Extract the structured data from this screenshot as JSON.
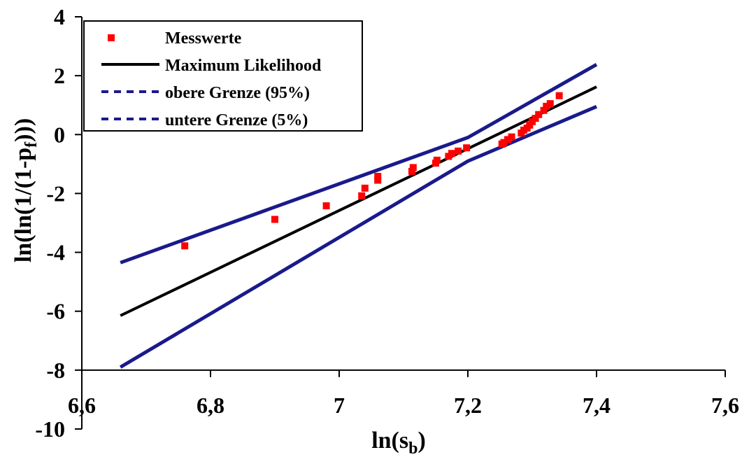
{
  "chart_data": {
    "type": "scatter",
    "xlabel": "ln(s",
    "xlabel_sub": "b",
    "xlabel_end": ")",
    "ylabel": "ln(ln(1/(1-p",
    "ylabel_sub": "f",
    "ylabel_end": ")))",
    "xlim": [
      6.6,
      7.6
    ],
    "ylim": [
      -10,
      4
    ],
    "x_ticks": [
      6.6,
      6.8,
      7.0,
      7.2,
      7.4,
      7.6
    ],
    "x_tick_labels": [
      "6,6",
      "6,8",
      "7",
      "7,2",
      "7,4",
      "7,6"
    ],
    "y_ticks": [
      4,
      2,
      0,
      -2,
      -4,
      -6,
      -8,
      -10
    ],
    "y_tick_labels": [
      "4",
      "2",
      "0",
      "-2",
      "-4",
      "-6",
      "-8",
      "-10"
    ],
    "x_axis_at_y": -8,
    "legend_position": "top-left",
    "series": [
      {
        "name": "Messwerte",
        "kind": "markers",
        "marker": "square",
        "color": "#ff0000",
        "points": [
          [
            6.76,
            -3.78
          ],
          [
            6.9,
            -2.88
          ],
          [
            6.98,
            -2.42
          ],
          [
            7.035,
            -2.08
          ],
          [
            7.04,
            -1.82
          ],
          [
            7.06,
            -1.55
          ],
          [
            7.06,
            -1.42
          ],
          [
            7.113,
            -1.25
          ],
          [
            7.115,
            -1.12
          ],
          [
            7.15,
            -0.97
          ],
          [
            7.152,
            -0.87
          ],
          [
            7.17,
            -0.74
          ],
          [
            7.175,
            -0.64
          ],
          [
            7.185,
            -0.56
          ],
          [
            7.198,
            -0.45
          ],
          [
            7.253,
            -0.32
          ],
          [
            7.256,
            -0.27
          ],
          [
            7.262,
            -0.17
          ],
          [
            7.268,
            -0.08
          ],
          [
            7.283,
            0.05
          ],
          [
            7.287,
            0.15
          ],
          [
            7.292,
            0.22
          ],
          [
            7.296,
            0.32
          ],
          [
            7.3,
            0.44
          ],
          [
            7.305,
            0.55
          ],
          [
            7.31,
            0.68
          ],
          [
            7.318,
            0.82
          ],
          [
            7.322,
            0.96
          ],
          [
            7.328,
            1.05
          ],
          [
            7.342,
            1.32
          ]
        ]
      },
      {
        "name": "Maximum Likelihood",
        "kind": "line",
        "color": "#000000",
        "points": [
          [
            6.66,
            -6.15
          ],
          [
            7.4,
            1.62
          ]
        ]
      },
      {
        "name": "obere Grenze (95%)",
        "kind": "line",
        "color": "#1a1a8c",
        "points": [
          [
            6.66,
            -4.35
          ],
          [
            7.2,
            -0.1
          ],
          [
            7.4,
            2.38
          ]
        ]
      },
      {
        "name": "untere Grenze (5%)",
        "kind": "line",
        "color": "#1a1a8c",
        "points": [
          [
            6.66,
            -7.9
          ],
          [
            7.2,
            -0.9
          ],
          [
            7.4,
            0.95
          ]
        ]
      }
    ]
  }
}
